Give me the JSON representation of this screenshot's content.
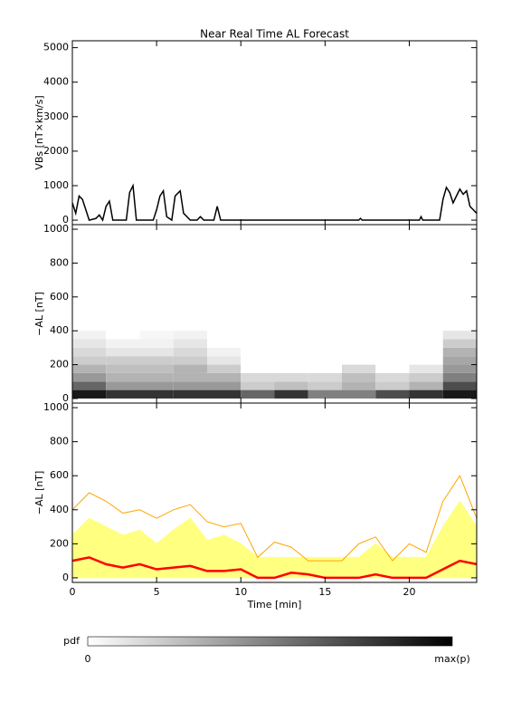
{
  "chart_data": [
    {
      "type": "line",
      "title": "Near Real Time AL Forecast",
      "ylabel": "VBs [nT×km/s]",
      "x": [
        0,
        0.2,
        0.4,
        0.6,
        0.8,
        1.0,
        1.4,
        1.6,
        1.8,
        2.0,
        2.2,
        2.4,
        3.2,
        3.4,
        3.6,
        3.8,
        4.8,
        5.0,
        5.2,
        5.4,
        5.6,
        5.9,
        6.1,
        6.4,
        6.6,
        7.0,
        7.4,
        7.6,
        7.8,
        8.4,
        8.6,
        8.8,
        17,
        17.1,
        17.2,
        20.6,
        20.7,
        20.8,
        21.8,
        22.0,
        22.2,
        22.4,
        22.6,
        22.8,
        23.0,
        23.2,
        23.4,
        23.6,
        23.8,
        24
      ],
      "values": [
        500,
        200,
        700,
        600,
        300,
        0,
        50,
        150,
        0,
        400,
        550,
        0,
        0,
        800,
        1000,
        0,
        0,
        300,
        700,
        850,
        100,
        0,
        700,
        850,
        200,
        0,
        0,
        100,
        0,
        0,
        400,
        0,
        0,
        50,
        0,
        0,
        100,
        0,
        0,
        600,
        950,
        800,
        500,
        700,
        900,
        750,
        850,
        400,
        300,
        200
      ],
      "color": "#000000",
      "xlim": [
        0,
        24
      ],
      "xticks": [
        0,
        5,
        10,
        15,
        20
      ],
      "ylim": [
        -130,
        5200
      ],
      "yticks": [
        0,
        1000,
        2000,
        3000,
        4000,
        5000
      ]
    },
    {
      "type": "heatmap",
      "ylabel": "−AL [nT]",
      "x_edges": [
        0,
        2,
        4,
        6,
        8,
        10,
        12,
        14,
        16,
        18,
        20,
        22,
        24
      ],
      "y_edges": [
        0,
        50,
        100,
        150,
        200,
        250,
        300,
        350,
        400
      ],
      "z": [
        [
          0.9,
          0.8,
          0.8,
          0.8,
          0.8,
          0.6,
          0.8,
          0.5,
          0.5,
          0.7,
          0.8,
          0.9
        ],
        [
          0.6,
          0.4,
          0.4,
          0.4,
          0.4,
          0.2,
          0.25,
          0.2,
          0.3,
          0.2,
          0.3,
          0.7
        ],
        [
          0.4,
          0.3,
          0.3,
          0.3,
          0.3,
          0.15,
          0.15,
          0.15,
          0.25,
          0.15,
          0.2,
          0.5
        ],
        [
          0.3,
          0.25,
          0.25,
          0.3,
          0.2,
          0,
          0,
          0,
          0.15,
          0,
          0.1,
          0.4
        ],
        [
          0.2,
          0.2,
          0.2,
          0.2,
          0.1,
          0,
          0,
          0,
          0,
          0,
          0,
          0.35
        ],
        [
          0.15,
          0.1,
          0.1,
          0.15,
          0.05,
          0,
          0,
          0,
          0,
          0,
          0,
          0.3
        ],
        [
          0.1,
          0.05,
          0.05,
          0.1,
          0,
          0,
          0,
          0,
          0,
          0,
          0,
          0.2
        ],
        [
          0.05,
          0,
          0.03,
          0.05,
          0,
          0,
          0,
          0,
          0,
          0,
          0,
          0.1
        ]
      ],
      "xlim": [
        0,
        24
      ],
      "xticks": [
        0,
        5,
        10,
        15,
        20
      ],
      "ylim": [
        -27,
        1027
      ],
      "yticks": [
        0,
        200,
        400,
        600,
        800,
        1000
      ],
      "colorbar": {
        "label": "pdf",
        "min_label": "0",
        "max_label": "max(p)"
      }
    },
    {
      "type": "area",
      "ylabel": "−AL [nT]",
      "xlabel": "Time [min]",
      "show_xtick_labels": true,
      "x": [
        0,
        1,
        2,
        3,
        4,
        5,
        6,
        7,
        8,
        9,
        10,
        11,
        12,
        13,
        14,
        15,
        16,
        17,
        18,
        19,
        20,
        21,
        22,
        23,
        24
      ],
      "series": [
        {
          "color": "#ffff80",
          "fill": true,
          "values": [
            250,
            350,
            300,
            250,
            280,
            200,
            280,
            350,
            220,
            250,
            200,
            120,
            120,
            120,
            120,
            120,
            120,
            120,
            200,
            120,
            120,
            120,
            300,
            450,
            300
          ]
        },
        {
          "color": "#ffa500",
          "fill": false,
          "values": [
            400,
            500,
            450,
            380,
            400,
            350,
            400,
            430,
            330,
            300,
            320,
            120,
            210,
            180,
            100,
            100,
            100,
            200,
            240,
            100,
            200,
            150,
            450,
            600,
            350
          ]
        },
        {
          "color": "#ff0000",
          "fill": false,
          "values": [
            100,
            120,
            80,
            60,
            80,
            50,
            60,
            70,
            40,
            40,
            50,
            0,
            0,
            30,
            20,
            0,
            0,
            0,
            20,
            0,
            0,
            0,
            50,
            100,
            80
          ]
        }
      ],
      "xlim": [
        0,
        24
      ],
      "xticks": [
        0,
        5,
        10,
        15,
        20
      ],
      "ylim": [
        -27,
        1027
      ],
      "yticks": [
        0,
        200,
        400,
        600,
        800,
        1000
      ]
    }
  ]
}
